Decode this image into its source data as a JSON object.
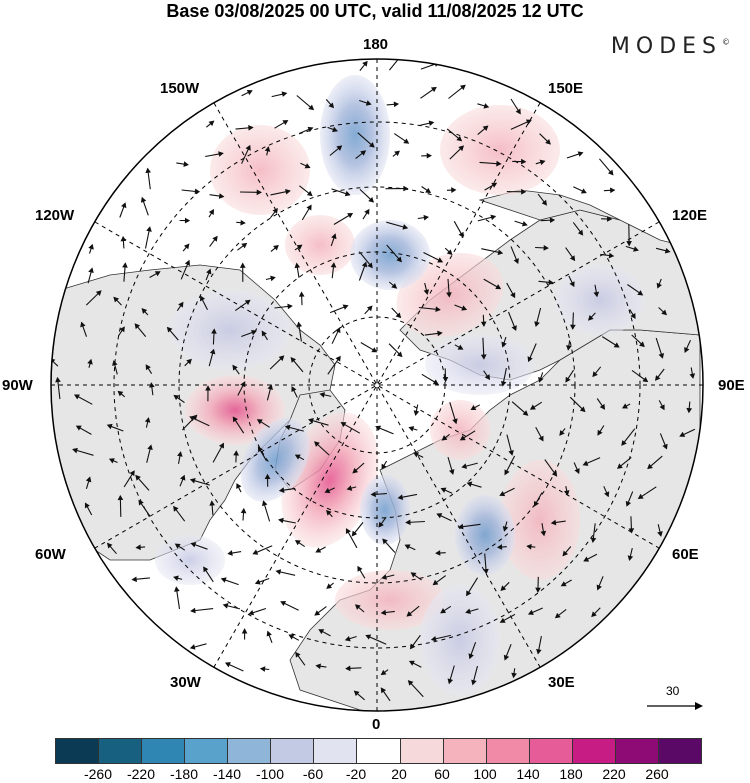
{
  "title": "Base 03/08/2025 00 UTC, valid 11/08/2025 12 UTC",
  "brand": "MODES",
  "brand_mark": "©",
  "lon_labels": {
    "n180": "180",
    "w150": "150W",
    "e150": "150E",
    "w120": "120W",
    "e120": "120E",
    "w90": "90W",
    "e90": "90E",
    "w60": "60W",
    "e60": "60E",
    "w30": "30W",
    "e30": "30E",
    "s0": "0"
  },
  "vector_scale": "30",
  "colorbar": {
    "colors": [
      "#0b3a55",
      "#17607f",
      "#2f86b3",
      "#58a2cc",
      "#8fb6d9",
      "#c3cbe4",
      "#e2e3f1",
      "#ffffff",
      "#f6d9da",
      "#f4b3bd",
      "#f08aa7",
      "#e65c98",
      "#c61c84",
      "#8e0a74",
      "#5a0a66"
    ],
    "labels": [
      "-260",
      "-220",
      "-180",
      "-140",
      "-100",
      "-60",
      "-20",
      "20",
      "60",
      "100",
      "140",
      "180",
      "220",
      "260"
    ]
  },
  "colors": {
    "land": "#e8e8e8",
    "ocean": "#ffffff",
    "grid": "#000000"
  }
}
